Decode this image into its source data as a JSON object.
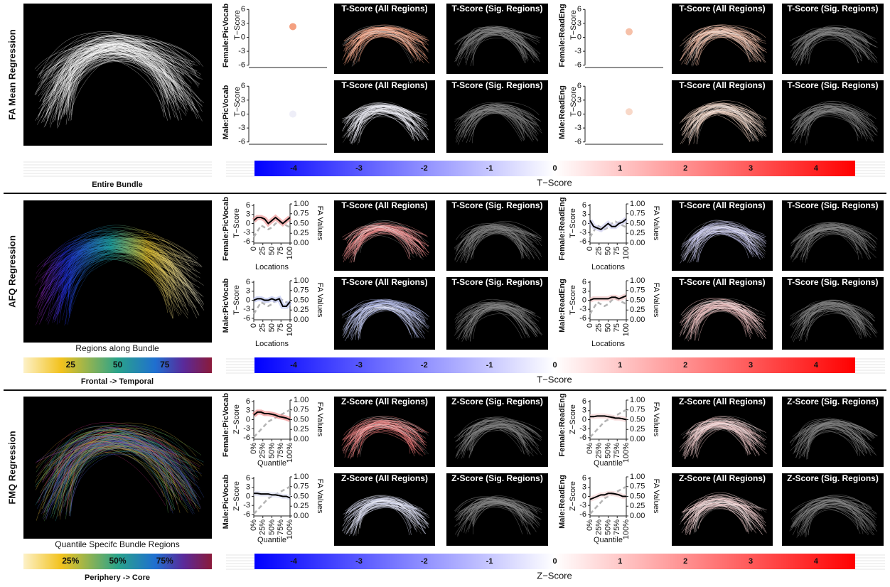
{
  "rows": [
    {
      "title": "FA Mean Regression",
      "direction": "Entire Bundle",
      "y_label": "T−Score",
      "ylim": [
        -6.5,
        6.5
      ],
      "yticks": [
        -6,
        -3,
        0,
        3,
        6
      ],
      "panel_titles": [
        "T-Score (All Regions)",
        "T-Score (Sig. Regions)"
      ],
      "colorbar": {
        "label": "T−Score",
        "lim": [
          -4.6,
          4.6
        ],
        "ticks": [
          -4,
          -3,
          -2,
          -1,
          0,
          1,
          2,
          3,
          4
        ]
      },
      "plots": [
        {
          "label": "Female:PicVocab",
          "value": 2.3,
          "color": "#f4a080"
        },
        {
          "label": "Male:PicVocab",
          "value": 0,
          "color": "#eeeef8"
        },
        {
          "label": "Female:ReadEng",
          "value": 1.2,
          "color": "#f6c0a8"
        },
        {
          "label": "Male:ReadEng",
          "value": 0.5,
          "color": "#f8d8c8"
        }
      ]
    },
    {
      "title": "AFQ Regression",
      "bundle_caption": "Regions along Bundle",
      "direction": "Frontal -> Temporal",
      "bundle_scale": {
        "lim": [
          0,
          100
        ],
        "ticks": [
          25,
          50,
          75
        ]
      },
      "y_label": "T−Score",
      "ylim": [
        -6.5,
        6.5
      ],
      "yticks": [
        -6,
        -3,
        0,
        3,
        6
      ],
      "y2_label": "FA Values",
      "y2lim": [
        0,
        1
      ],
      "y2ticks": [
        {
          "value": 0,
          "label": "0.00"
        },
        0.25,
        {
          "value": 0.5,
          "label": "0.50"
        },
        0.75,
        {
          "value": 1,
          "label": "1.00"
        }
      ],
      "x_label": "Locations",
      "xlim": [
        0,
        100
      ],
      "xticks": [
        0,
        25,
        50,
        75,
        100
      ],
      "x": [
        0,
        10,
        20,
        30,
        40,
        50,
        60,
        70,
        80,
        90,
        100
      ],
      "line_color": "#000000",
      "fa_color": "#b4b4b4",
      "panel_titles": [
        "T-Score (All Regions)",
        "T-Score (Sig. Regions)"
      ],
      "colorbar": {
        "label": "T−Score",
        "lim": [
          -4.6,
          4.6
        ],
        "ticks": [
          -4,
          -3,
          -2,
          -1,
          0,
          1,
          2,
          3,
          4
        ]
      },
      "plots": [
        {
          "label": "Female:PicVocab",
          "color": "#ee8c8c",
          "t_values": [
            1,
            2,
            2,
            1.5,
            0,
            1,
            2,
            1,
            0,
            1,
            2
          ],
          "fa_values": [
            0.15,
            0.3,
            0.45,
            0.4,
            0.35,
            0.4,
            0.5,
            0.55,
            0.5,
            0.45,
            0.4
          ]
        },
        {
          "label": "Male:PicVocab",
          "color": "#b8c0f0",
          "t_values": [
            0,
            0.5,
            0.5,
            0,
            0,
            0.5,
            0,
            0.5,
            -2,
            -2,
            -0.5
          ],
          "fa_values": [
            0.15,
            0.3,
            0.45,
            0.4,
            0.35,
            0.4,
            0.5,
            0.55,
            0.5,
            0.45,
            0.4
          ]
        },
        {
          "label": "Female:ReadEng",
          "color": "#c8c8f0",
          "t_values": [
            1,
            -1,
            -1.5,
            -2,
            -1,
            0,
            -1,
            -1,
            0,
            0.5,
            1.5
          ],
          "fa_values": [
            0.15,
            0.3,
            0.45,
            0.4,
            0.35,
            0.4,
            0.5,
            0.55,
            0.5,
            0.45,
            0.4
          ]
        },
        {
          "label": "Male:ReadEng",
          "color": "#f0c0c0",
          "t_values": [
            0,
            0.5,
            0.5,
            0.5,
            0.5,
            0.5,
            1,
            1,
            0.5,
            1,
            1.5
          ],
          "fa_values": [
            0.15,
            0.3,
            0.45,
            0.4,
            0.35,
            0.4,
            0.5,
            0.55,
            0.5,
            0.45,
            0.4
          ]
        }
      ]
    },
    {
      "title": "FMQ Regression",
      "bundle_caption": "Quantile Specifc Bundle Regions",
      "direction": "Periphery -> Core",
      "bundle_scale": {
        "lim": [
          0,
          100
        ],
        "ticks": [
          {
            "value": 25,
            "label": "25%"
          },
          {
            "value": 50,
            "label": "50%"
          },
          {
            "value": 75,
            "label": "75%"
          }
        ]
      },
      "y_label": "Z−Score",
      "ylim": [
        -6.5,
        6.5
      ],
      "yticks": [
        -6,
        -3,
        0,
        3,
        6
      ],
      "y2_label": "FA Values",
      "y2lim": [
        0,
        1
      ],
      "y2ticks": [
        {
          "value": 0,
          "label": "0.00"
        },
        0.25,
        {
          "value": 0.5,
          "label": "0.50"
        },
        0.75,
        {
          "value": 1,
          "label": "1.00"
        }
      ],
      "x_label": "Quantile",
      "xlim": [
        0,
        100
      ],
      "xticks": [
        {
          "value": 0,
          "label": "0%"
        },
        {
          "value": 25,
          "label": "25%"
        },
        {
          "value": 50,
          "label": "50%"
        },
        {
          "value": 75,
          "label": "75%"
        },
        {
          "value": 100,
          "label": "100%"
        }
      ],
      "x": [
        0,
        10,
        20,
        30,
        40,
        50,
        60,
        70,
        80,
        90,
        100
      ],
      "line_color": "#000000",
      "fa_color": "#b4b4b4",
      "panel_titles": [
        "Z-Score (All Regions)",
        "Z-Score (Sig. Regions)"
      ],
      "colorbar": {
        "label": "Z−Score",
        "lim": [
          -4.6,
          4.6
        ],
        "ticks": [
          -4,
          -3,
          -2,
          -1,
          0,
          1,
          2,
          3,
          4
        ]
      },
      "plots": [
        {
          "label": "Female:PicVocab",
          "color": "#ee7c7c",
          "t_values": [
            1.5,
            2.5,
            2.5,
            2,
            2,
            1.8,
            1.5,
            1,
            0.8,
            0.5,
            0
          ],
          "fa_values": [
            0.05,
            0.15,
            0.25,
            0.35,
            0.45,
            0.5,
            0.55,
            0.6,
            0.65,
            0.7,
            0.75
          ]
        },
        {
          "label": "Male:PicVocab",
          "color": "#d8dcf4",
          "t_values": [
            1,
            1,
            0.8,
            0.8,
            0.8,
            0.5,
            0.5,
            0.3,
            0,
            0,
            -0.5
          ],
          "fa_values": [
            0.05,
            0.15,
            0.25,
            0.35,
            0.45,
            0.5,
            0.55,
            0.6,
            0.65,
            0.7,
            0.75
          ]
        },
        {
          "label": "Female:ReadEng",
          "color": "#f4cccc",
          "t_values": [
            1,
            1,
            1.2,
            1.2,
            1.2,
            1,
            0.8,
            0.5,
            0.5,
            0.3,
            0
          ],
          "fa_values": [
            0.05,
            0.15,
            0.25,
            0.35,
            0.45,
            0.5,
            0.55,
            0.6,
            0.65,
            0.7,
            0.75
          ]
        },
        {
          "label": "Male:ReadEng",
          "color": "#f4d0d0",
          "t_values": [
            -1,
            -0.5,
            0,
            0.5,
            0.5,
            1,
            1,
            0.8,
            0.5,
            0,
            0
          ],
          "fa_values": [
            0.05,
            0.15,
            0.25,
            0.35,
            0.45,
            0.5,
            0.55,
            0.6,
            0.65,
            0.7,
            0.75
          ]
        }
      ]
    }
  ]
}
